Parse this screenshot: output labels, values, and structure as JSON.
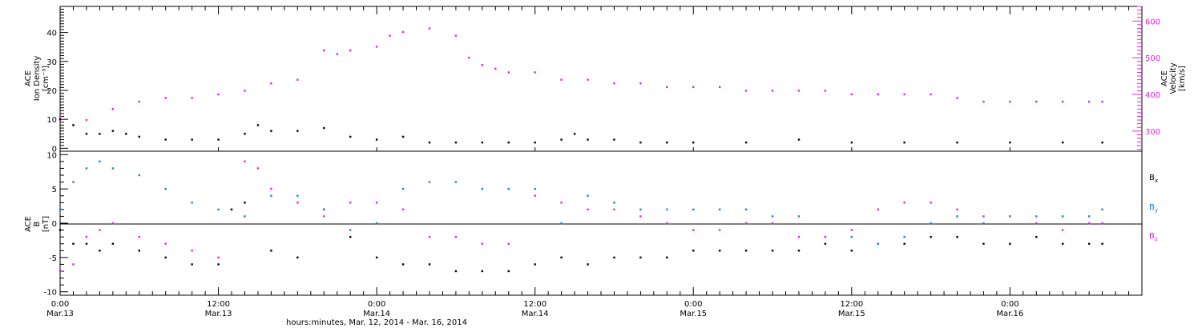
{
  "colors": {
    "black": "#000000",
    "magenta": "#e81ce8",
    "blue": "#1a7fe0"
  },
  "chart_data": [
    {
      "type": "scatter",
      "panel": "top",
      "ylabel_left": [
        "ACE",
        "Ion Density",
        "[cm⁻³]"
      ],
      "ylabel_right": [
        "ACE",
        "Velocity",
        "[km/s]"
      ],
      "x_unit": "hours since Mar.13 00:00",
      "xlim": [
        0,
        82
      ],
      "ylim_left": [
        -1,
        49
      ],
      "yticks_left": [
        "0",
        "10",
        "20",
        "30",
        "40"
      ],
      "ylim_right": [
        245,
        640
      ],
      "yticks_right": [
        "300",
        "400",
        "500",
        "600"
      ],
      "series": [
        {
          "axis": "left",
          "color": "black",
          "x": [
            0,
            1,
            2,
            3,
            4,
            5,
            6,
            8,
            10,
            12,
            14,
            15,
            16,
            18,
            20,
            22,
            24,
            26,
            28,
            30,
            32,
            34,
            36,
            38,
            39,
            40,
            42,
            44,
            46,
            48,
            52,
            56,
            60,
            64,
            68,
            72,
            76,
            79
          ],
          "y": [
            10,
            8,
            5,
            5,
            6,
            5,
            4,
            3,
            3,
            3,
            5,
            8,
            6,
            6,
            7,
            4,
            3,
            4,
            2,
            2,
            2,
            2,
            2,
            3,
            5,
            3,
            3,
            2,
            2,
            2,
            2,
            3,
            2,
            2,
            2,
            2,
            2,
            2
          ]
        },
        {
          "axis": "right",
          "color": "magenta",
          "x": [
            0,
            2,
            4,
            6,
            8,
            10,
            12,
            14,
            16,
            18,
            20,
            21,
            22,
            24,
            25,
            26,
            28,
            30,
            31,
            32,
            33,
            34,
            36,
            38,
            40,
            42,
            44,
            46,
            48,
            50,
            52,
            54,
            56,
            58,
            60,
            62,
            64,
            66,
            68,
            70,
            72,
            74,
            76,
            78,
            79
          ],
          "y": [
            340,
            330,
            360,
            380,
            390,
            390,
            400,
            410,
            430,
            440,
            520,
            510,
            520,
            530,
            560,
            570,
            580,
            560,
            500,
            480,
            470,
            460,
            460,
            440,
            440,
            430,
            430,
            420,
            420,
            420,
            410,
            410,
            410,
            410,
            400,
            400,
            400,
            400,
            390,
            380,
            380,
            380,
            380,
            380,
            380
          ]
        }
      ]
    },
    {
      "type": "scatter",
      "panel": "bottom",
      "ylabel_left": [
        "ACE",
        "B",
        "[nT]"
      ],
      "x_unit": "hours since Mar.13 00:00",
      "xlim": [
        0,
        82
      ],
      "ylim": [
        -10.5,
        10.5
      ],
      "yticks": [
        "-10",
        "-5",
        "0",
        "5",
        "10"
      ],
      "legend_position": "right",
      "legend": [
        {
          "label": "B",
          "sub": "x",
          "color": "black"
        },
        {
          "label": "B",
          "sub": "y",
          "color": "blue"
        },
        {
          "label": "B",
          "sub": "z",
          "color": "magenta"
        }
      ],
      "series": [
        {
          "name": "Bx",
          "color": "black",
          "x": [
            0,
            1,
            2,
            3,
            4,
            6,
            8,
            10,
            12,
            13,
            14,
            16,
            18,
            20,
            22,
            24,
            26,
            28,
            30,
            32,
            34,
            36,
            38,
            40,
            42,
            44,
            46,
            48,
            50,
            52,
            54,
            56,
            58,
            60,
            62,
            64,
            66,
            68,
            70,
            72,
            74,
            76,
            78,
            79
          ],
          "y": [
            -1,
            -3,
            -3,
            -4,
            -3,
            -4,
            -5,
            -6,
            -6,
            2,
            3,
            -4,
            -5,
            2,
            -2,
            -5,
            -6,
            -6,
            -7,
            -7,
            -7,
            -6,
            -5,
            -6,
            -5,
            -5,
            -5,
            -4,
            -4,
            -4,
            -4,
            -4,
            -3,
            -4,
            -3,
            -3,
            -2,
            -2,
            -3,
            -3,
            -2,
            -3,
            -3,
            -3
          ]
        },
        {
          "name": "By",
          "color": "blue",
          "x": [
            0,
            1,
            2,
            3,
            4,
            6,
            8,
            10,
            12,
            14,
            16,
            18,
            20,
            22,
            24,
            26,
            28,
            30,
            32,
            34,
            36,
            38,
            40,
            42,
            44,
            46,
            48,
            50,
            52,
            54,
            56,
            58,
            60,
            62,
            64,
            66,
            68,
            70,
            72,
            74,
            76,
            78,
            79
          ],
          "y": [
            2,
            6,
            8,
            9,
            8,
            7,
            5,
            3,
            2,
            1,
            4,
            4,
            2,
            -1,
            0,
            5,
            6,
            6,
            5,
            5,
            5,
            0,
            4,
            3,
            2,
            2,
            2,
            2,
            2,
            1,
            1,
            -2,
            -2,
            -3,
            -2,
            0,
            1,
            0,
            1,
            1,
            1,
            1,
            2
          ]
        },
        {
          "name": "Bz",
          "color": "magenta",
          "x": [
            0,
            1,
            2,
            3,
            4,
            6,
            8,
            10,
            12,
            14,
            15,
            16,
            18,
            20,
            22,
            24,
            26,
            28,
            30,
            32,
            34,
            36,
            38,
            40,
            42,
            44,
            46,
            48,
            50,
            52,
            54,
            56,
            58,
            60,
            62,
            64,
            66,
            68,
            70,
            72,
            74,
            76,
            78,
            79
          ],
          "y": [
            -7,
            -6,
            -2,
            -1,
            0,
            -2,
            -3,
            -4,
            -5,
            9,
            8,
            5,
            3,
            1,
            3,
            3,
            2,
            -2,
            -2,
            -3,
            -3,
            4,
            3,
            2,
            2,
            1,
            0,
            -1,
            -1,
            0,
            0,
            -2,
            -2,
            -1,
            2,
            3,
            3,
            2,
            1,
            1,
            0,
            -1,
            0,
            0
          ]
        }
      ]
    }
  ],
  "x_axis": {
    "tick_labels": [
      {
        "x": 0,
        "time": "0:00",
        "day": "Mar.13"
      },
      {
        "x": 12,
        "time": "12:00",
        "day": "Mar.13"
      },
      {
        "x": 24,
        "time": "0:00",
        "day": "Mar.14"
      },
      {
        "x": 36,
        "time": "12:00",
        "day": "Mar.14"
      },
      {
        "x": 48,
        "time": "0:00",
        "day": "Mar.15"
      },
      {
        "x": 60,
        "time": "12:00",
        "day": "Mar.15"
      },
      {
        "x": 72,
        "time": "0:00",
        "day": "Mar.16"
      }
    ],
    "title": "hours:minutes, Mar. 12, 2014 - Mar. 16, 2014"
  }
}
